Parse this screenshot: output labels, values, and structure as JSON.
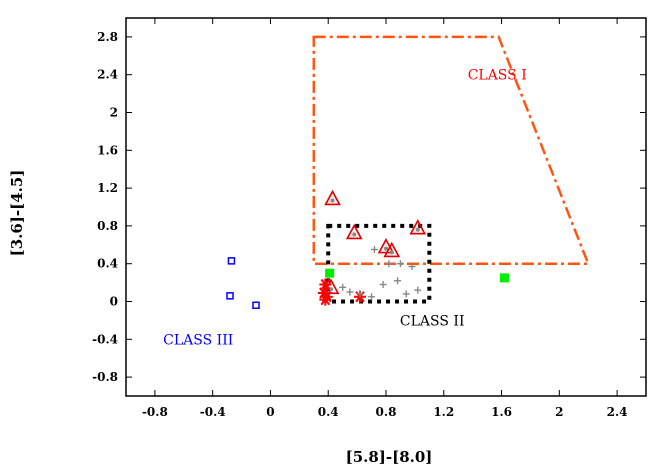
{
  "chart_data": {
    "type": "scatter",
    "title": "",
    "xlabel": "[5.8]-[8.0]",
    "ylabel": "[3.6]-[4.5]",
    "xlim": [
      -1.0,
      2.6
    ],
    "ylim": [
      -1.0,
      3.0
    ],
    "x_ticks": [
      -0.8,
      -0.4,
      0,
      0.4,
      0.8,
      1.2,
      1.6,
      2,
      2.4
    ],
    "y_ticks": [
      -0.8,
      -0.4,
      0,
      0.4,
      0.8,
      1.2,
      1.6,
      2,
      2.4,
      2.8
    ],
    "grid": false,
    "legend": "none",
    "series": [
      {
        "marker": "open-square",
        "color": "#0000ff",
        "points": [
          {
            "x": -0.27,
            "y": 0.43
          },
          {
            "x": -0.28,
            "y": 0.06
          },
          {
            "x": -0.1,
            "y": -0.04
          }
        ]
      },
      {
        "marker": "filled-square",
        "color": "#00ee00",
        "points": [
          {
            "x": 0.41,
            "y": 0.3
          },
          {
            "x": 1.62,
            "y": 0.25
          }
        ]
      },
      {
        "marker": "open-triangle",
        "color": "#dd0000",
        "points": [
          {
            "x": 0.43,
            "y": 1.08
          },
          {
            "x": 0.58,
            "y": 0.72
          },
          {
            "x": 0.8,
            "y": 0.57
          },
          {
            "x": 0.84,
            "y": 0.53
          },
          {
            "x": 1.02,
            "y": 0.77
          },
          {
            "x": 0.42,
            "y": 0.14
          }
        ]
      },
      {
        "marker": "asterisk",
        "color": "#ff0000",
        "points": [
          {
            "x": 0.38,
            "y": 0.18
          },
          {
            "x": 0.37,
            "y": 0.09
          },
          {
            "x": 0.38,
            "y": 0.02
          },
          {
            "x": 0.39,
            "y": 0.05
          },
          {
            "x": 0.62,
            "y": 0.05
          }
        ]
      },
      {
        "marker": "plus",
        "color": "#888888",
        "points": [
          {
            "x": 0.55,
            "y": 0.1
          },
          {
            "x": 0.62,
            "y": 0.08
          },
          {
            "x": 0.7,
            "y": 0.05
          },
          {
            "x": 0.78,
            "y": 0.18
          },
          {
            "x": 0.88,
            "y": 0.22
          },
          {
            "x": 0.94,
            "y": 0.08
          },
          {
            "x": 1.02,
            "y": 0.12
          },
          {
            "x": 0.72,
            "y": 0.55
          },
          {
            "x": 0.82,
            "y": 0.4
          },
          {
            "x": 0.9,
            "y": 0.4
          },
          {
            "x": 0.98,
            "y": 0.37
          },
          {
            "x": 0.5,
            "y": 0.15
          }
        ]
      }
    ],
    "regions": [
      {
        "name": "CLASS I",
        "style": "dash-dot",
        "color": "#ff5511",
        "vertices": [
          [
            0.3,
            2.8
          ],
          [
            1.58,
            2.8
          ],
          [
            2.2,
            0.4
          ],
          [
            0.3,
            0.4
          ]
        ],
        "label_at": [
          1.57,
          2.4
        ],
        "label_color": "#ff0000"
      },
      {
        "name": "CLASS II",
        "style": "dotted",
        "color": "#000000",
        "vertices": [
          [
            0.4,
            0.8
          ],
          [
            1.1,
            0.8
          ],
          [
            1.1,
            0.0
          ],
          [
            0.4,
            0.0
          ]
        ],
        "label_at": [
          1.12,
          -0.2
        ],
        "label_color": "#000000"
      },
      {
        "name": "CLASS III",
        "style": "none",
        "color": "#0000ff",
        "vertices": [],
        "label_at": [
          -0.5,
          -0.4
        ],
        "label_color": "#0000ff"
      }
    ]
  }
}
